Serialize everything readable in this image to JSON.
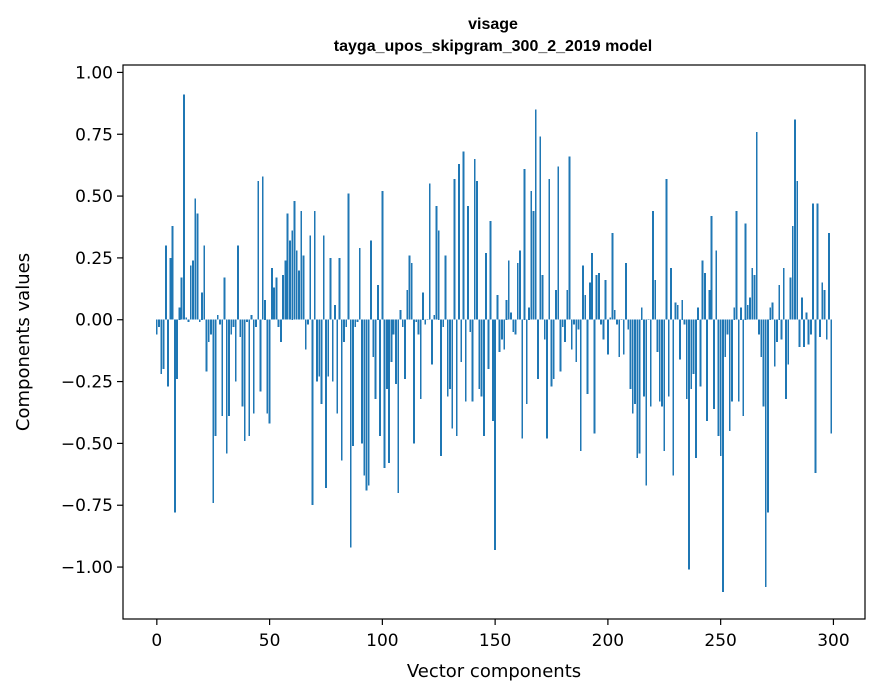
{
  "chart_data": {
    "type": "bar",
    "title": "visage",
    "subtitle": "tayga_upos_skipgram_300_2_2019 model",
    "xlabel": "Vector components",
    "ylabel": "Components values",
    "xlim": [
      -15,
      314
    ],
    "ylim": [
      -1.21,
      1.03
    ],
    "xticks": [
      0,
      50,
      100,
      150,
      200,
      250,
      300
    ],
    "xtick_labels": [
      "0",
      "50",
      "100",
      "150",
      "200",
      "250",
      "300"
    ],
    "yticks": [
      1.0,
      0.75,
      0.5,
      0.25,
      0.0,
      -0.25,
      -0.5,
      -0.75,
      -1.0
    ],
    "ytick_labels": [
      "1.00",
      "0.75",
      "0.50",
      "0.25",
      "0.00",
      "−0.25",
      "−0.50",
      "−0.75",
      "−1.00"
    ],
    "bar_color": "#1f77b4",
    "grid": false,
    "legend": "none",
    "values": [
      -0.06,
      -0.03,
      -0.22,
      -0.2,
      0.3,
      -0.27,
      0.25,
      0.38,
      -0.78,
      -0.24,
      0.05,
      0.17,
      0.91,
      0.01,
      -0.01,
      0.22,
      0.24,
      0.49,
      0.43,
      -0.01,
      0.11,
      0.3,
      -0.21,
      -0.09,
      -0.06,
      -0.74,
      -0.47,
      0.02,
      -0.02,
      -0.39,
      0.17,
      -0.54,
      -0.39,
      -0.06,
      -0.03,
      -0.25,
      0.3,
      -0.07,
      -0.35,
      -0.49,
      -0.01,
      -0.47,
      0.02,
      -0.38,
      -0.03,
      0.56,
      -0.29,
      0.58,
      0.08,
      -0.38,
      -0.42,
      0.21,
      0.13,
      0.17,
      -0.03,
      -0.09,
      0.18,
      0.24,
      0.43,
      0.32,
      0.36,
      0.48,
      0.28,
      0.2,
      0.44,
      0.26,
      -0.12,
      -0.02,
      0.34,
      -0.75,
      0.44,
      -0.25,
      -0.23,
      -0.34,
      0.34,
      -0.68,
      -0.23,
      0.25,
      -0.25,
      0.06,
      -0.38,
      0.25,
      -0.57,
      -0.09,
      -0.03,
      0.51,
      -0.92,
      -0.51,
      -0.03,
      -0.01,
      0.29,
      -0.5,
      -0.63,
      -0.69,
      -0.67,
      0.32,
      -0.15,
      -0.32,
      0.14,
      -0.47,
      0.52,
      -0.6,
      -0.28,
      -0.58,
      -0.17,
      -0.06,
      -0.26,
      -0.7,
      0.04,
      -0.03,
      -0.24,
      0.12,
      0.26,
      0.23,
      -0.5,
      -0.01,
      -0.06,
      -0.32,
      0.11,
      -0.02,
      0.0,
      0.55,
      -0.18,
      0.02,
      0.46,
      0.36,
      -0.55,
      -0.03,
      0.26,
      -0.31,
      -0.28,
      -0.44,
      0.57,
      -0.47,
      0.63,
      -0.17,
      0.68,
      -0.33,
      0.46,
      -0.05,
      -0.33,
      0.65,
      0.56,
      -0.28,
      -0.31,
      -0.47,
      0.27,
      -0.2,
      0.4,
      -0.41,
      -0.93,
      0.1,
      -0.13,
      -0.08,
      -0.12,
      0.08,
      0.24,
      0.03,
      -0.05,
      -0.06,
      0.23,
      0.28,
      -0.48,
      0.61,
      -0.34,
      0.05,
      0.52,
      0.44,
      0.85,
      -0.24,
      0.74,
      0.18,
      -0.08,
      -0.48,
      0.57,
      -0.27,
      -0.24,
      0.12,
      0.62,
      -0.21,
      -0.03,
      -0.09,
      0.12,
      0.66,
      -0.12,
      -0.02,
      -0.17,
      -0.04,
      -0.53,
      0.22,
      0.1,
      -0.3,
      0.15,
      0.27,
      -0.46,
      0.18,
      0.19,
      -0.02,
      -0.08,
      0.16,
      -0.14,
      0.01,
      0.35,
      0.04,
      -0.02,
      -0.15,
      0.0,
      -0.14,
      0.23,
      -0.04,
      -0.28,
      -0.38,
      -0.34,
      -0.56,
      -0.54,
      0.05,
      -0.31,
      -0.67,
      0.0,
      -0.35,
      0.44,
      0.16,
      -0.13,
      -0.33,
      -0.35,
      -0.53,
      0.57,
      -0.31,
      0.21,
      -0.63,
      0.07,
      0.06,
      -0.16,
      0.08,
      -0.02,
      -0.32,
      -1.01,
      -0.28,
      -0.22,
      -0.56,
      0.05,
      -0.27,
      0.24,
      0.19,
      -0.41,
      0.12,
      0.42,
      -0.36,
      0.28,
      -0.47,
      -0.55,
      -1.1,
      -0.15,
      -0.06,
      -0.45,
      -0.33,
      0.05,
      0.44,
      -0.33,
      0.05,
      -0.39,
      0.39,
      0.06,
      0.09,
      0.21,
      0.18,
      0.76,
      -0.06,
      -0.15,
      -0.35,
      -1.08,
      -0.78,
      0.05,
      0.07,
      -0.19,
      -0.09,
      0.14,
      -0.08,
      0.21,
      -0.32,
      -0.18,
      0.17,
      0.38,
      0.81,
      0.56,
      -0.11,
      0.09,
      -0.11,
      0.03,
      -0.1,
      -0.06,
      0.47,
      -0.62,
      0.47,
      -0.07,
      0.15,
      0.12,
      -0.08,
      0.35,
      -0.46
    ]
  }
}
